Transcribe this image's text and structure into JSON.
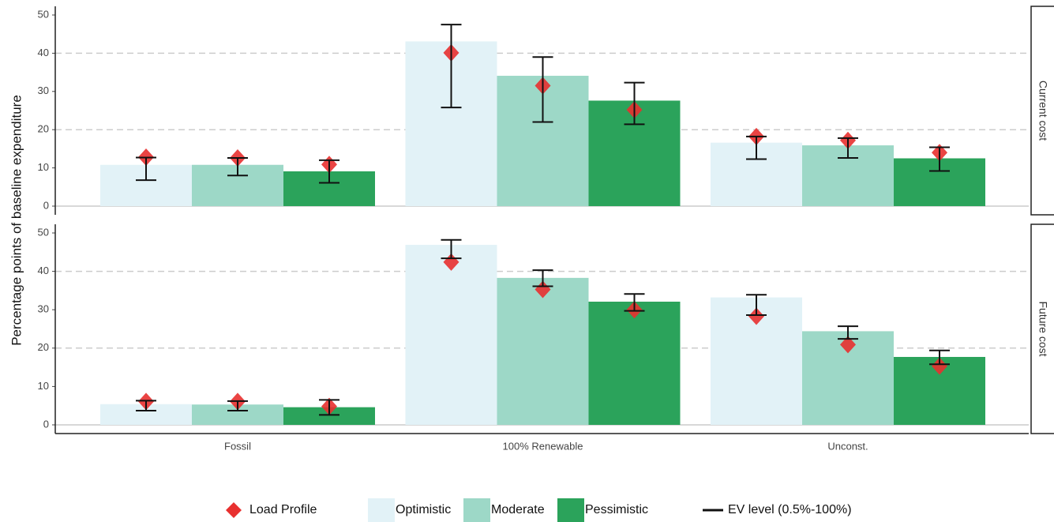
{
  "chart_data": {
    "type": "bar",
    "y_label": "Percentage points of baseline expenditure",
    "categories": [
      "Fossil",
      "100% Renewable",
      "Unconst."
    ],
    "series": [
      {
        "name": "Optimistic",
        "color": "#e2f2f7"
      },
      {
        "name": "Moderate",
        "color": "#9dd8c7"
      },
      {
        "name": "Pessimistic",
        "color": "#2ba35b"
      }
    ],
    "load_profile_label": "Load Profile",
    "load_profile_color": "#e8302f",
    "ev_label": "EV level (0.5%-100%)",
    "ylim": [
      0,
      50
    ],
    "yticks": [
      0,
      10,
      20,
      30,
      40,
      50
    ],
    "gridlines": [
      20,
      40
    ],
    "panels": [
      {
        "title": "Current cost",
        "values": [
          [
            10.8,
            43.1,
            16.6
          ],
          [
            10.8,
            34.1,
            15.9
          ],
          [
            9.1,
            27.6,
            12.5
          ]
        ],
        "error_low": [
          [
            6.8,
            25.8,
            12.3
          ],
          [
            8.0,
            22.0,
            12.6
          ],
          [
            6.1,
            21.4,
            9.2
          ]
        ],
        "error_high": [
          [
            12.7,
            47.5,
            18.2
          ],
          [
            12.6,
            39.0,
            17.8
          ],
          [
            12.0,
            32.3,
            15.4
          ]
        ],
        "load_profile": [
          [
            12.8,
            40.1,
            18.2
          ],
          [
            12.6,
            31.5,
            17.2
          ],
          [
            10.9,
            25.2,
            14.0
          ]
        ]
      },
      {
        "title": "Future cost",
        "values": [
          [
            5.4,
            46.9,
            33.2
          ],
          [
            5.3,
            38.3,
            24.4
          ],
          [
            4.6,
            32.1,
            17.7
          ]
        ],
        "error_low": [
          [
            3.7,
            43.4,
            28.6
          ],
          [
            3.7,
            36.1,
            22.4
          ],
          [
            2.6,
            29.7,
            15.8
          ]
        ],
        "error_high": [
          [
            6.3,
            48.2,
            33.9
          ],
          [
            6.2,
            40.3,
            25.7
          ],
          [
            6.5,
            34.1,
            19.4
          ]
        ],
        "load_profile": [
          [
            6.1,
            42.4,
            28.3
          ],
          [
            6.1,
            35.3,
            20.9
          ],
          [
            4.8,
            30.0,
            15.3
          ]
        ]
      }
    ]
  }
}
